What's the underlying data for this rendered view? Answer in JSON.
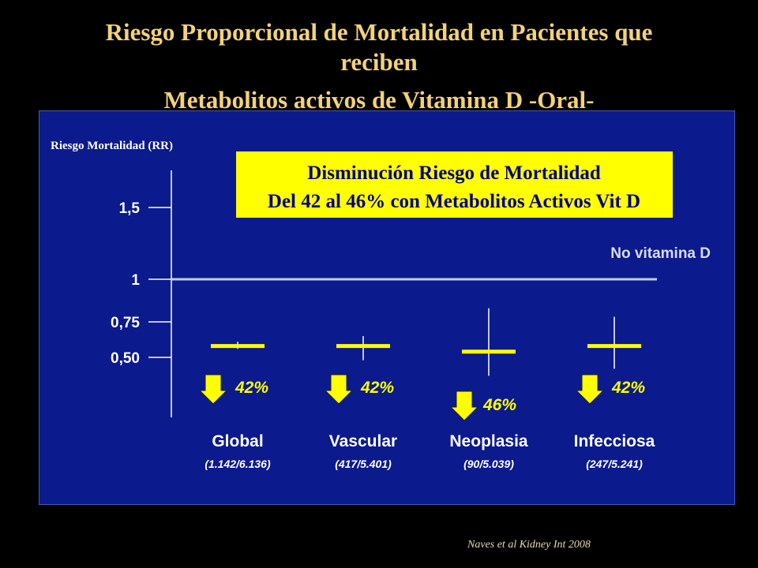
{
  "slide": {
    "title_line1": "Riesgo Proporcional de Mortalidad en Pacientes que",
    "title_line2": "reciben",
    "title_line3": "Metabolitos activos de Vitamina D -Oral-",
    "source": "Naves et al Kidney Int 2008"
  },
  "callout": {
    "line1": "Disminución Riesgo de Mortalidad",
    "line2": "Del 42 al 46% con Metabolitos Activos Vit D"
  },
  "colors": {
    "background": "#000000",
    "panel": "#0B1A8C",
    "title": "#F2D27A",
    "callout_fill": "#FFFF00",
    "marker": "#FFFF00",
    "arrow": "#FFFF00",
    "text": "#FFFFFF"
  },
  "chart_data": {
    "type": "forest",
    "ylabel": "Riesgo Mortalidad (RR)",
    "yticks": [
      "1,5",
      "1",
      "0,75",
      "0,50"
    ],
    "ytick_values": [
      1.5,
      1.0,
      0.75,
      0.5
    ],
    "reference": {
      "value": 1.0,
      "label": "No vitamina D"
    },
    "categories": [
      {
        "name": "Global",
        "counts": "(1.142/6.136)",
        "rr": 0.58,
        "ci_low": 0.56,
        "ci_high": 0.61,
        "reduction": "42%"
      },
      {
        "name": "Vascular",
        "counts": "(417/5.401)",
        "rr": 0.58,
        "ci_low": 0.48,
        "ci_high": 0.65,
        "reduction": "42%"
      },
      {
        "name": "Neoplasia",
        "counts": "(90/5.039)",
        "rr": 0.54,
        "ci_low": 0.37,
        "ci_high": 0.83,
        "reduction": "46%"
      },
      {
        "name": "Infecciosa",
        "counts": "(247/5.241)",
        "rr": 0.58,
        "ci_low": 0.42,
        "ci_high": 0.78,
        "reduction": "42%"
      }
    ]
  }
}
